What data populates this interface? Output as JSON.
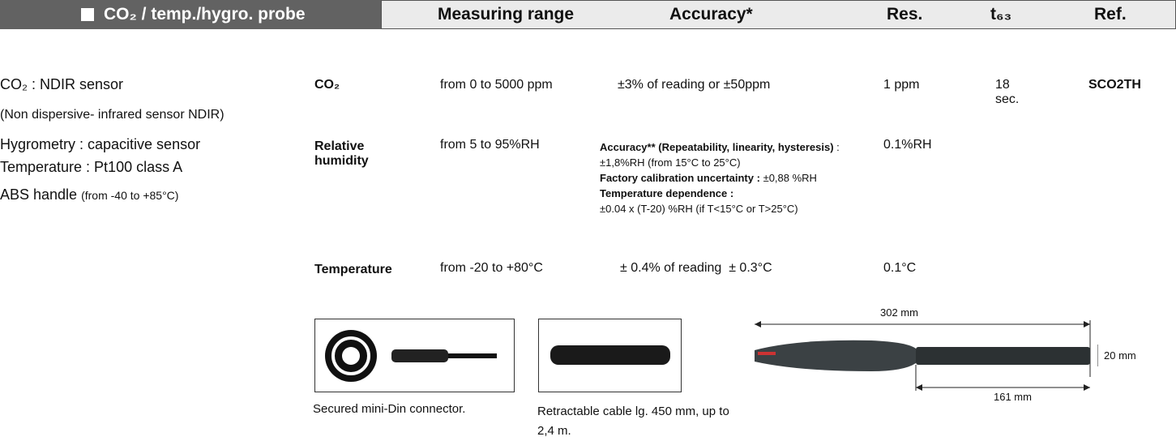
{
  "header": {
    "title": "CO₂ / temp./hygro. probe",
    "columns": [
      "Measuring range",
      "Accuracy*",
      "Res.",
      "t₆₃",
      "Ref."
    ]
  },
  "description": [
    "CO₂ : NDIR sensor",
    "(Non dispersive- infrared sensor NDIR)",
    "Hygrometry : capacitive sensor",
    "Temperature : Pt100 class A",
    "ABS handle",
    "(from -40 to +85°C)"
  ],
  "rows": [
    {
      "parameter": "CO₂",
      "range": "from 0 to 5000 ppm",
      "accuracy": "±3% of reading or ±50ppm",
      "resolution": "1 ppm",
      "t63": "18 sec.",
      "ref": "SCO2TH"
    },
    {
      "parameter": "Relative humidity",
      "range": "from 5 to 95%RH",
      "accuracy_notes": [
        {
          "label": "Accuracy** (Repeatability, linearity, hysteresis)",
          "text": ": ±1,8%RH (from 15°C to 25°C)"
        },
        {
          "label": "Factory calibration uncertainty :",
          "text": "±0,88 %RH"
        },
        {
          "label": "Temperature dependence :",
          "text": "±0.04 x (T-20) %RH (if T<15°C or T>25°C)"
        }
      ],
      "resolution": "0.1%RH"
    },
    {
      "parameter": "Temperature",
      "range": "from -20 to +80°C",
      "accuracy": "± 0.4% of reading  ± 0.3°C",
      "resolution": "0.1°C"
    }
  ],
  "images": [
    {
      "caption": "Secured mini-Din connector."
    },
    {
      "caption": "Retractable cable lg. 450 mm, up to 2,4 m."
    }
  ],
  "dimensions": {
    "length": "302 mm",
    "diameter": "20 mm",
    "tube": "161 mm"
  }
}
